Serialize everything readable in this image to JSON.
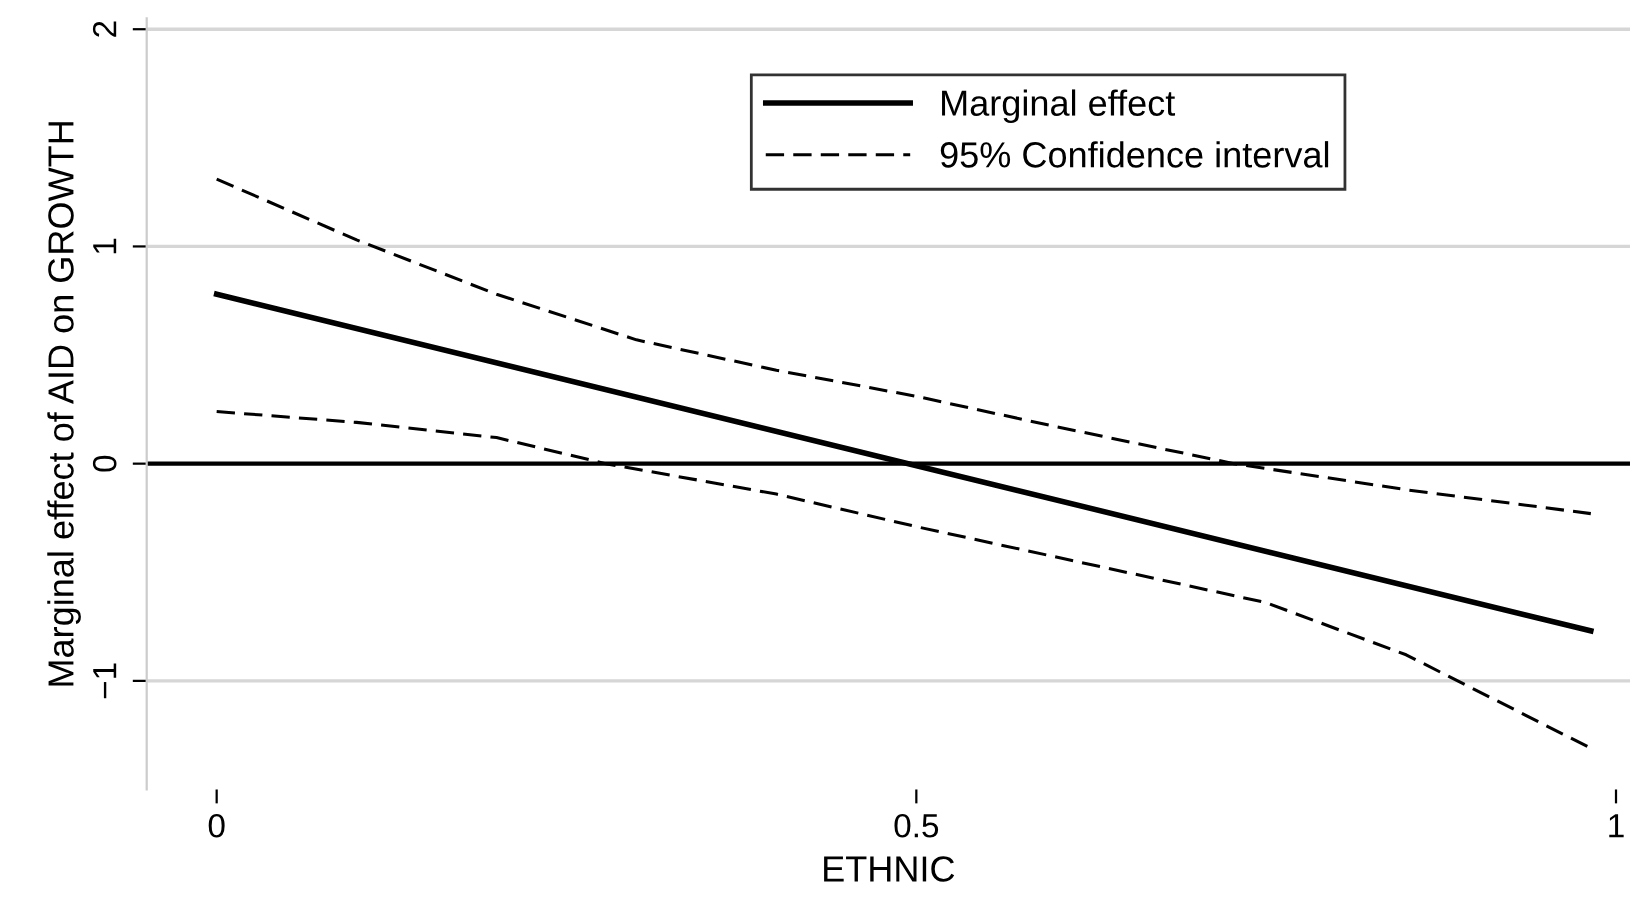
{
  "chart_data": {
    "type": "line",
    "xlabel": "ETHNIC",
    "ylabel": "Marginal effect of AID on GROWTH",
    "xlim": [
      -0.05,
      1.01
    ],
    "ylim": [
      -1.5,
      2.05
    ],
    "xticks": [
      0,
      0.5,
      1
    ],
    "yticks": [
      -1,
      0,
      1,
      2
    ],
    "grid": "y",
    "legend": "top right",
    "ref_lines": [
      {
        "axis": "y",
        "value": 0,
        "color": "#000000",
        "line_style": "solid"
      }
    ],
    "series": [
      {
        "name": "Marginal effect",
        "color": "#000000",
        "line_style": "solid",
        "x": [
          0,
          0.982
        ],
        "values": [
          0.78,
          -0.77
        ]
      },
      {
        "name": "95% Confidence interval",
        "color": "#000000",
        "line_style": "dashed",
        "x": [
          0,
          0.1,
          0.2,
          0.3,
          0.4,
          0.5,
          0.6,
          0.727,
          0.85,
          0.982
        ],
        "values": [
          1.31,
          1.03,
          0.78,
          0.57,
          0.43,
          0.31,
          0.17,
          0,
          -0.12,
          -0.23
        ]
      },
      {
        "color": "#000000",
        "line_style": "dashed",
        "x": [
          0,
          0.1,
          0.2,
          0.278,
          0.4,
          0.5,
          0.6,
          0.75,
          0.85,
          0.982
        ],
        "values": [
          0.24,
          0.19,
          0.12,
          0,
          -0.14,
          -0.29,
          -0.43,
          -0.64,
          -0.88,
          -1.31
        ]
      }
    ]
  }
}
